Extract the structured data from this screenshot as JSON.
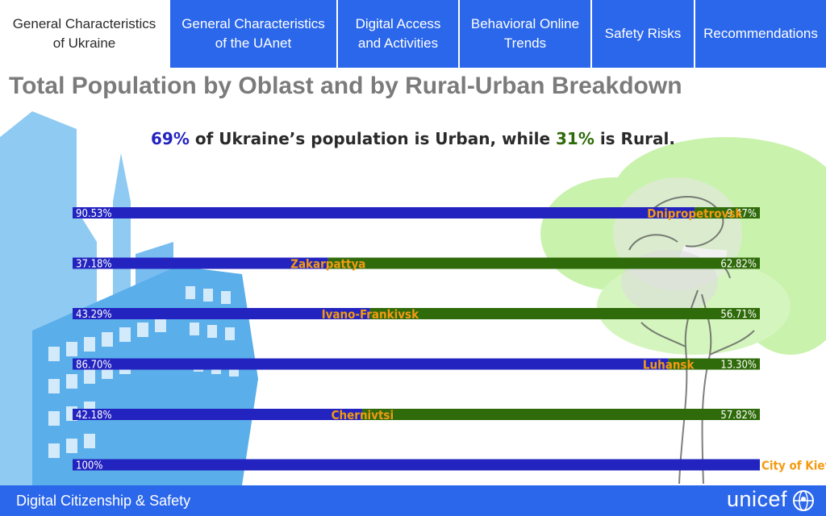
{
  "nav": {
    "tabs": [
      {
        "label": "General Characteristics\nof Ukraine",
        "active": true
      },
      {
        "label": "General Characteristics\nof the UAnet",
        "active": false
      },
      {
        "label": "Digital Access\nand Activities",
        "active": false
      },
      {
        "label": "Behavioral Online\nTrends",
        "active": false
      },
      {
        "label": "Safety Risks",
        "active": false
      },
      {
        "label": "Recommendations",
        "active": false
      }
    ]
  },
  "page": {
    "title": "Total Population by Oblast and by Rural-Urban Breakdown"
  },
  "summary": {
    "urban_pct": "69%",
    "mid_text": " of Ukraine’s population is Urban, while ",
    "rural_pct": "31%",
    "end_text": " is Rural."
  },
  "chart_data": {
    "type": "bar",
    "orientation": "horizontal",
    "stacked_split": true,
    "categories": [
      "Dnipropetrovsk",
      "Zakarpattya",
      "Ivano-Frankivsk",
      "Luhansk",
      "Chernivtsi",
      "City of Kiev"
    ],
    "series": [
      {
        "name": "Urban",
        "values": [
          90.53,
          37.18,
          43.29,
          86.7,
          42.18,
          100
        ],
        "labels": [
          "90.53%",
          "37.18%",
          "43.29%",
          "86.70%",
          "42.18%",
          "100%"
        ]
      },
      {
        "name": "Rural",
        "values": [
          9.47,
          62.82,
          56.71,
          13.3,
          57.82,
          0
        ],
        "labels": [
          "9.47%",
          "62.82%",
          "56.71%",
          "13.30%",
          "57.82%",
          ""
        ]
      }
    ],
    "colors": {
      "urban": "#2323c0",
      "rural": "#2f6b0a",
      "category_label": "#f39a12"
    },
    "legend": "none",
    "grid": false
  },
  "footer": {
    "text": "Digital Citizenship & Safety",
    "logo_text": "unicef",
    "logo_icon": "unicef-globe-icon"
  },
  "colors": {
    "nav_blue": "#2b67ea",
    "title_gray": "#7b7b7b",
    "building_blue": "#6db6ee",
    "tree_green": "#c4f0a6"
  }
}
